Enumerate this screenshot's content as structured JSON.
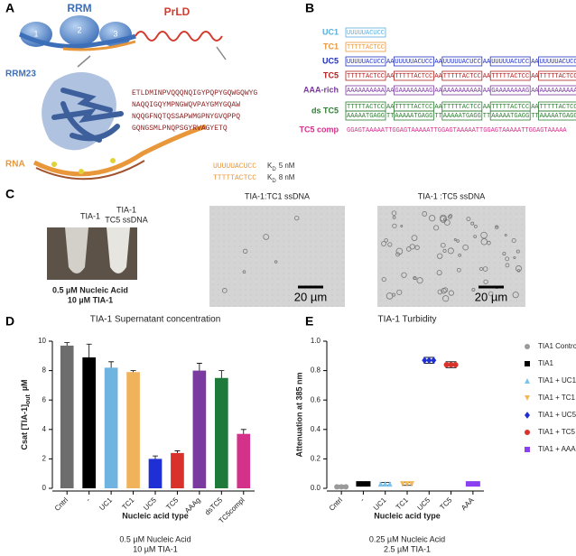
{
  "panels": {
    "a": "A",
    "b": "B",
    "c": "C",
    "d": "D",
    "e": "E"
  },
  "panel_a": {
    "rrm": "RRM",
    "prld": "PrLD",
    "domains": [
      "1",
      "2",
      "3"
    ],
    "rrm23": "RRM23",
    "rna": "RNA",
    "sequence": [
      "ETLDMINPVQQQNQIGYPQPYGQWGQWYG",
      "NAQQIGQYMPNGWQVPAYGMYGQAW",
      "NQQGFNQTQSSAPWMGPNYGVQPPQ",
      "GQNGSMLPNQPSGYRVAGYETQ"
    ],
    "binding": [
      {
        "seq": "UUUUUACUCC",
        "k": "K",
        "sub": "D",
        "value": "5 nM"
      },
      {
        "seq": "TTTTTACTCC",
        "k": "K",
        "sub": "D",
        "value": "8 nM"
      }
    ]
  },
  "panel_b": {
    "rows": [
      {
        "label": "UC1",
        "color": "#5aaee0",
        "boxes": [
          "UUUUUACUCC"
        ]
      },
      {
        "label": "TC1",
        "color": "#e8973a",
        "boxes": [
          "TTTTTACTCC"
        ]
      },
      {
        "label": "UC5",
        "color": "#2030c0",
        "boxes": [
          "UUUUUACUCC",
          "UUUUUACUCC",
          "UUUUUACUCC",
          "UUUUUACUCC",
          "UUUUUACUCC"
        ],
        "link": "AA"
      },
      {
        "label": "TC5",
        "color": "#b02020",
        "boxes": [
          "TTTTTACTCC",
          "TTTTTACTCC",
          "TTTTTACTCC",
          "TTTTTACTCC",
          "TTTTTACTCC"
        ],
        "link": "AA"
      },
      {
        "label": "AAA-rich",
        "color": "#7b3aa0",
        "boxes": [
          "AAAAAAAAAA",
          "GAAAAAAAAG",
          "AAAAAAAAAA",
          "GAAAAAAAAG",
          "AAAAAAAAAA"
        ],
        "link": "AA"
      },
      {
        "label": "ds TC5",
        "color": "#2e7d32",
        "boxes": [
          "TTTTTACTCC",
          "TTTTTACTCC",
          "TTTTTACTCC",
          "TTTTTACTCC",
          "TTTTTACTCC"
        ],
        "link": "AA",
        "lower": [
          "AAAAATGAGG",
          "AAAAATGAGG",
          "AAAAATGAGG",
          "AAAAATGAGG",
          "AAAAATGAGG"
        ],
        "lower_link": "TT"
      },
      {
        "label": "TC5 comp",
        "color": "#d4318a",
        "text": "GGAGTAAAAATTGGAGTAAAAATTGGAGTAAAAATTGGAGTAAAAATTGGAGTAAAAA"
      }
    ]
  },
  "panel_c": {
    "tubes": [
      [
        "TIA-1"
      ],
      [
        "TIA-1",
        "TC5 ssDNA"
      ]
    ],
    "conditions": [
      "0.5 µM Nucleic Acid",
      "10 µM TIA-1"
    ],
    "images": [
      {
        "title": "TIA-1:TC1 ssDNA",
        "scale": "20 µm"
      },
      {
        "title": "TIA-1 :TC5 ssDNA",
        "scale": "20 µm"
      }
    ]
  },
  "chart_data": [
    {
      "type": "bar",
      "title": "TIA-1 Supernatant concentration",
      "ylabel": {
        "main": "Csat [TIA-1]",
        "sub": "out",
        "unit": "µM"
      },
      "xlabel": "Nucleic acid type",
      "footnote": [
        "0.5 µM Nucleic Acid",
        "10 µM TIA-1"
      ],
      "categories": [
        "Cntrl",
        "-",
        "UC1",
        "TC1",
        "UC5",
        "TC5",
        "AAAg",
        "dsTC5",
        "TC5compl"
      ],
      "values": [
        9.7,
        8.9,
        8.2,
        7.9,
        2.0,
        2.4,
        8.0,
        7.5,
        3.7
      ],
      "errors": [
        0.2,
        0.9,
        0.4,
        0.1,
        0.2,
        0.15,
        0.5,
        0.5,
        0.3
      ],
      "colors": [
        "#6d6d6d",
        "#000000",
        "#6fb3e0",
        "#f0b35c",
        "#1f2fd6",
        "#d9322b",
        "#7b3aa0",
        "#1e7a3a",
        "#d4318a"
      ],
      "ylim": [
        0,
        10
      ],
      "yticks": [
        0,
        2,
        4,
        6,
        8,
        10
      ]
    },
    {
      "type": "dot",
      "title": "TIA-1  Turbidity",
      "ylabel": "Attenuation at 385 nm",
      "xlabel": "Nucleic acid type",
      "footnote": [
        "0.25 µM Nucleic Acid",
        "2.5 µM TIA-1"
      ],
      "categories": [
        "Cntrl",
        "-",
        "UC1",
        "TC1",
        "UC5",
        "TC5",
        "AAA"
      ],
      "ylim": [
        0,
        1
      ],
      "yticks": [
        {
          "value": 0,
          "label": "0.0"
        },
        0.2,
        0.4,
        0.6,
        0.8,
        {
          "value": 1,
          "label": "1.0"
        }
      ],
      "series": [
        {
          "name": "TIA1 Control",
          "color": "#9a9a9a",
          "marker": "circle",
          "values": [
            0.01,
            null,
            null,
            null,
            null,
            null,
            null
          ],
          "errors": [
            0.01,
            null,
            null,
            null,
            null,
            null,
            null
          ]
        },
        {
          "name": "TIA1",
          "color": "#000000",
          "marker": "square",
          "values": [
            null,
            0.03,
            null,
            null,
            null,
            null,
            null
          ],
          "errors": [
            null,
            0.01,
            null,
            null,
            null,
            null,
            null
          ]
        },
        {
          "name": "TIA1 + UC1",
          "color": "#7cc4ec",
          "marker": "triangle",
          "values": [
            null,
            null,
            0.03,
            null,
            null,
            null,
            null
          ],
          "errors": [
            null,
            null,
            0.01,
            null,
            null,
            null,
            null
          ]
        },
        {
          "name": "TIA1 + TC1",
          "color": "#f3b85a",
          "marker": "triangle-down",
          "values": [
            null,
            null,
            null,
            0.03,
            null,
            null,
            null
          ],
          "errors": [
            null,
            null,
            null,
            0.01,
            null,
            null,
            null
          ]
        },
        {
          "name": "TIA1 + UC5",
          "color": "#1f2fd6",
          "marker": "diamond",
          "values": [
            null,
            null,
            null,
            null,
            0.87,
            null,
            null
          ],
          "errors": [
            null,
            null,
            null,
            null,
            0.02,
            null,
            null
          ]
        },
        {
          "name": "TIA1 + TC5",
          "color": "#d9322b",
          "marker": "circle",
          "values": [
            null,
            null,
            null,
            null,
            null,
            0.84,
            null
          ],
          "errors": [
            null,
            null,
            null,
            null,
            null,
            0.02,
            null
          ]
        },
        {
          "name": "TIA1 + AAA",
          "color": "#8a3ff0",
          "marker": "square",
          "values": [
            null,
            null,
            null,
            null,
            null,
            null,
            0.03
          ],
          "errors": [
            null,
            null,
            null,
            null,
            null,
            null,
            0.01
          ]
        }
      ]
    }
  ]
}
